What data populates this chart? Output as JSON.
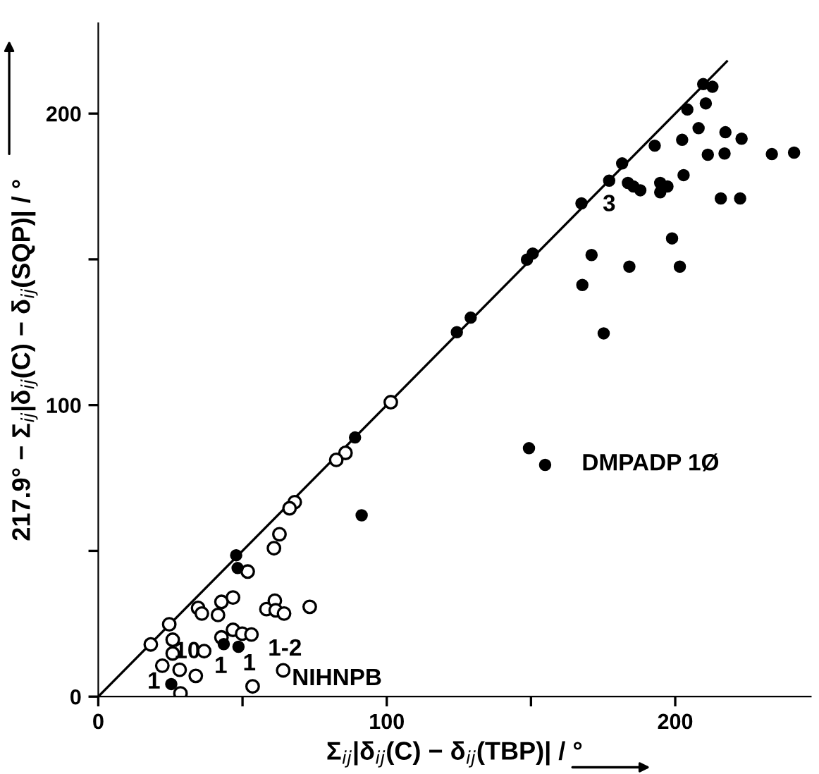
{
  "chart_data": {
    "type": "scatter",
    "xlabel": "Σ$_{ij}$|δ$_{ij}$(C) − δ$_{ij}$(TBP)| / °",
    "ylabel": "217.9° − Σ$_{ij}$|δ$_{ij}$(C) − δ$_{ij}$(SQP)| / °",
    "xlim": [
      0,
      247
    ],
    "ylim": [
      0,
      231
    ],
    "xticks": [
      0,
      {
        "value": 50,
        "label": null
      },
      100,
      {
        "value": 150,
        "label": null
      },
      200
    ],
    "yticks": [
      0,
      {
        "value": 50,
        "label": null
      },
      100,
      {
        "value": 150,
        "label": null
      },
      200
    ],
    "grid": false,
    "series": [
      {
        "type": "line",
        "color": "#000000",
        "x": [
          0,
          217.9
        ],
        "values": [
          0,
          217.9
        ]
      },
      {
        "color": "#000000",
        "marker": "circle",
        "x": [
          209.7,
          212.9,
          210.6,
          204.2,
          208.1,
          217.4,
          223.0,
          202.4,
          192.9,
          211.3,
          217.1,
          233.5,
          241.2,
          181.6,
          177.1,
          183.6,
          185.5,
          187.9,
          194.8,
          197.3,
          194.8,
          202.9,
          167.5,
          215.8,
          222.5,
          198.9,
          171.0,
          184.1,
          201.6,
          167.8,
          175.2,
          150.6,
          148.6,
          129.1,
          124.3,
          149.3,
          154.9,
          89.0,
          91.3,
          47.8,
          48.3,
          43.5,
          48.6,
          25.3
        ],
        "values": [
          210.1,
          209.2,
          203.5,
          201.4,
          195.0,
          193.6,
          191.4,
          191.0,
          189.0,
          185.9,
          186.3,
          186.1,
          186.6,
          182.9,
          177.0,
          176.2,
          175.0,
          173.7,
          176.2,
          175.0,
          173.0,
          178.9,
          169.2,
          170.9,
          170.9,
          157.2,
          151.5,
          147.5,
          147.5,
          141.2,
          124.6,
          152.0,
          149.9,
          130.0,
          125.0,
          85.2,
          79.5,
          88.9,
          62.2,
          48.5,
          44.1,
          18.0,
          17.1,
          4.3
        ]
      },
      {
        "color": "#ffffff",
        "marker": "circle",
        "x": [
          101.4,
          85.7,
          82.5,
          68.1,
          66.3,
          62.8,
          60.9,
          51.8,
          34.6,
          35.9,
          42.7,
          41.5,
          46.7,
          58.3,
          61.2,
          61.5,
          64.4,
          73.3,
          24.6,
          18.2,
          25.8,
          25.8,
          22.2,
          28.2,
          33.8,
          36.7,
          42.7,
          46.7,
          49.9,
          53.1,
          64.1,
          53.5,
          28.5
        ],
        "values": [
          101.0,
          83.6,
          81.2,
          66.7,
          64.6,
          55.7,
          50.9,
          42.9,
          30.4,
          28.5,
          32.5,
          28.0,
          34.0,
          30.0,
          32.9,
          29.6,
          28.5,
          30.8,
          24.8,
          17.9,
          19.5,
          14.8,
          10.6,
          9.2,
          7.1,
          15.6,
          20.3,
          22.9,
          21.6,
          21.3,
          9.0,
          3.5,
          1.1
        ]
      }
    ],
    "annotations": [
      "1",
      "10",
      "1",
      "1",
      "1-2",
      "NIHNPB",
      "3",
      "DMPADP 1Ø"
    ]
  }
}
